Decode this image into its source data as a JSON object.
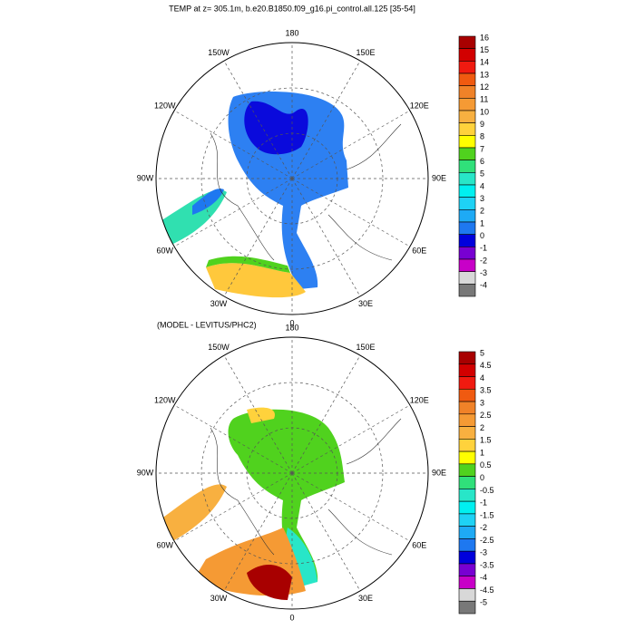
{
  "maps": [
    {
      "title": "TEMP at z= 305.1m, b.e20.B1850.f09_g16.pi_control.all.125 [35-54]",
      "lon_labels": [
        "0",
        "30E",
        "60E",
        "90E",
        "120E",
        "150E",
        "180",
        "150W",
        "120W",
        "90W",
        "60W",
        "30W"
      ],
      "colorbar": {
        "labels": [
          "16",
          "15",
          "14",
          "13",
          "12",
          "11",
          "10",
          "9",
          "8",
          "7",
          "6",
          "5",
          "4",
          "3",
          "2",
          "1",
          "0",
          "-1",
          "-2",
          "-3",
          "-4"
        ],
        "colors": [
          "#a80000",
          "#d20000",
          "#f01a10",
          "#f05a10",
          "#f08228",
          "#f59a34",
          "#f8b040",
          "#ffd23c",
          "#ffff00",
          "#50d21e",
          "#30e07a",
          "#28e6c8",
          "#00f0f0",
          "#1ed2f5",
          "#1eaaf5",
          "#1e78f0",
          "#0000dc",
          "#7800d2",
          "#c800c8",
          "#d8d8d8",
          "#787878"
        ]
      }
    },
    {
      "title": "(MODEL - LEVITUS/PHC2)",
      "lon_labels": [
        "0",
        "30E",
        "60E",
        "90E",
        "120E",
        "150E",
        "180",
        "150W",
        "120W",
        "90W",
        "60W",
        "30W"
      ],
      "colorbar": {
        "labels": [
          "5",
          "4.5",
          "4",
          "3.5",
          "3",
          "2.5",
          "2",
          "1.5",
          "1",
          "0.5",
          "0",
          "-0.5",
          "-1",
          "-1.5",
          "-2",
          "-2.5",
          "-3",
          "-3.5",
          "-4",
          "-4.5",
          "-5"
        ],
        "colors": [
          "#a80000",
          "#d20000",
          "#f01a10",
          "#f05a10",
          "#f08228",
          "#f59a34",
          "#f8b040",
          "#ffd23c",
          "#ffff00",
          "#50d21e",
          "#30e07a",
          "#28e6c8",
          "#00f0f0",
          "#1ed2f5",
          "#1eaaf5",
          "#1e78f0",
          "#0000dc",
          "#7800d2",
          "#c800c8",
          "#d8d8d8",
          "#787878"
        ]
      }
    }
  ]
}
